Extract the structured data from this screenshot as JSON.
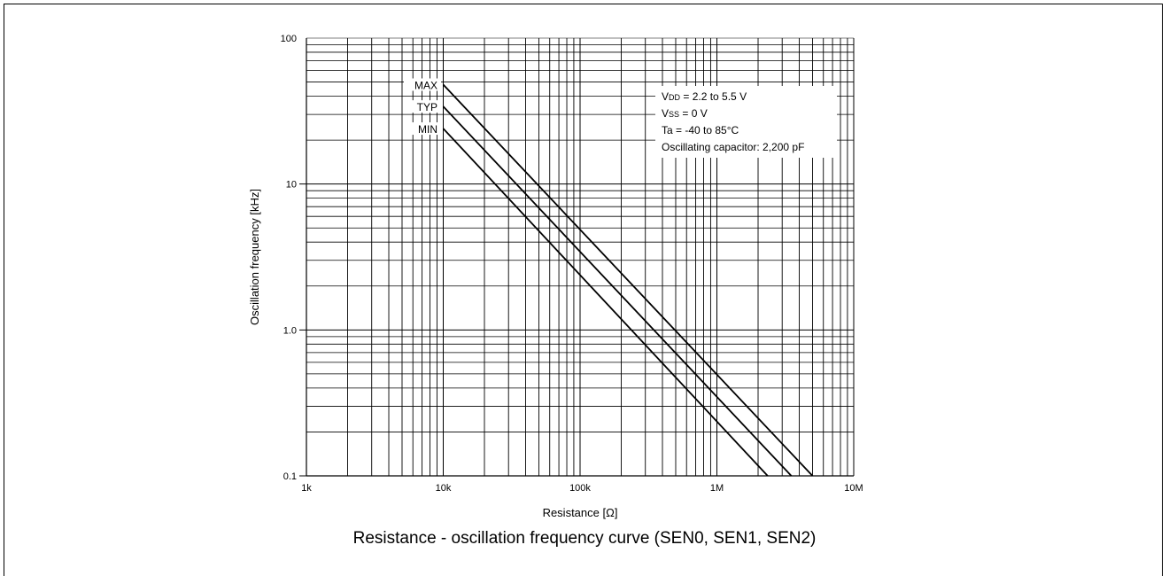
{
  "chart_data": {
    "type": "line",
    "xscale": "log",
    "yscale": "log",
    "xlim": [
      1000,
      10000000
    ],
    "ylim": [
      0.1,
      100
    ],
    "xlabel": "Resistance [Ω]",
    "ylabel": "Oscillation frequency [kHz]",
    "x_ticks": [
      {
        "value": 1000,
        "label": "1k"
      },
      {
        "value": 10000,
        "label": "10k"
      },
      {
        "value": 100000,
        "label": "100k"
      },
      {
        "value": 1000000,
        "label": "1M"
      },
      {
        "value": 10000000,
        "label": "10M"
      }
    ],
    "y_ticks": [
      {
        "value": 0.1,
        "label": "0.1"
      },
      {
        "value": 1,
        "label": "1.0"
      },
      {
        "value": 10,
        "label": "10"
      },
      {
        "value": 100,
        "label": "100"
      }
    ],
    "grid": true,
    "series": [
      {
        "name": "MAX",
        "x": [
          10000,
          5000000
        ],
        "y": [
          48,
          0.1
        ]
      },
      {
        "name": "TYP",
        "x": [
          10000,
          3500000
        ],
        "y": [
          34,
          0.1
        ]
      },
      {
        "name": "MIN",
        "x": [
          10000,
          2350000
        ],
        "y": [
          24,
          0.1
        ]
      }
    ],
    "conditions": [
      {
        "prefix": "V",
        "sub": "DD",
        "text": " = 2.2 to 5.5 V"
      },
      {
        "prefix": "V",
        "sub": "SS",
        "text": " = 0 V"
      },
      {
        "prefix": "",
        "sub": "",
        "text": "Ta = -40 to 85°C"
      },
      {
        "prefix": "",
        "sub": "",
        "text": "Oscillating capacitor: 2,200 pF"
      }
    ]
  },
  "caption": "Resistance - oscillation frequency curve (SEN0, SEN1, SEN2)"
}
